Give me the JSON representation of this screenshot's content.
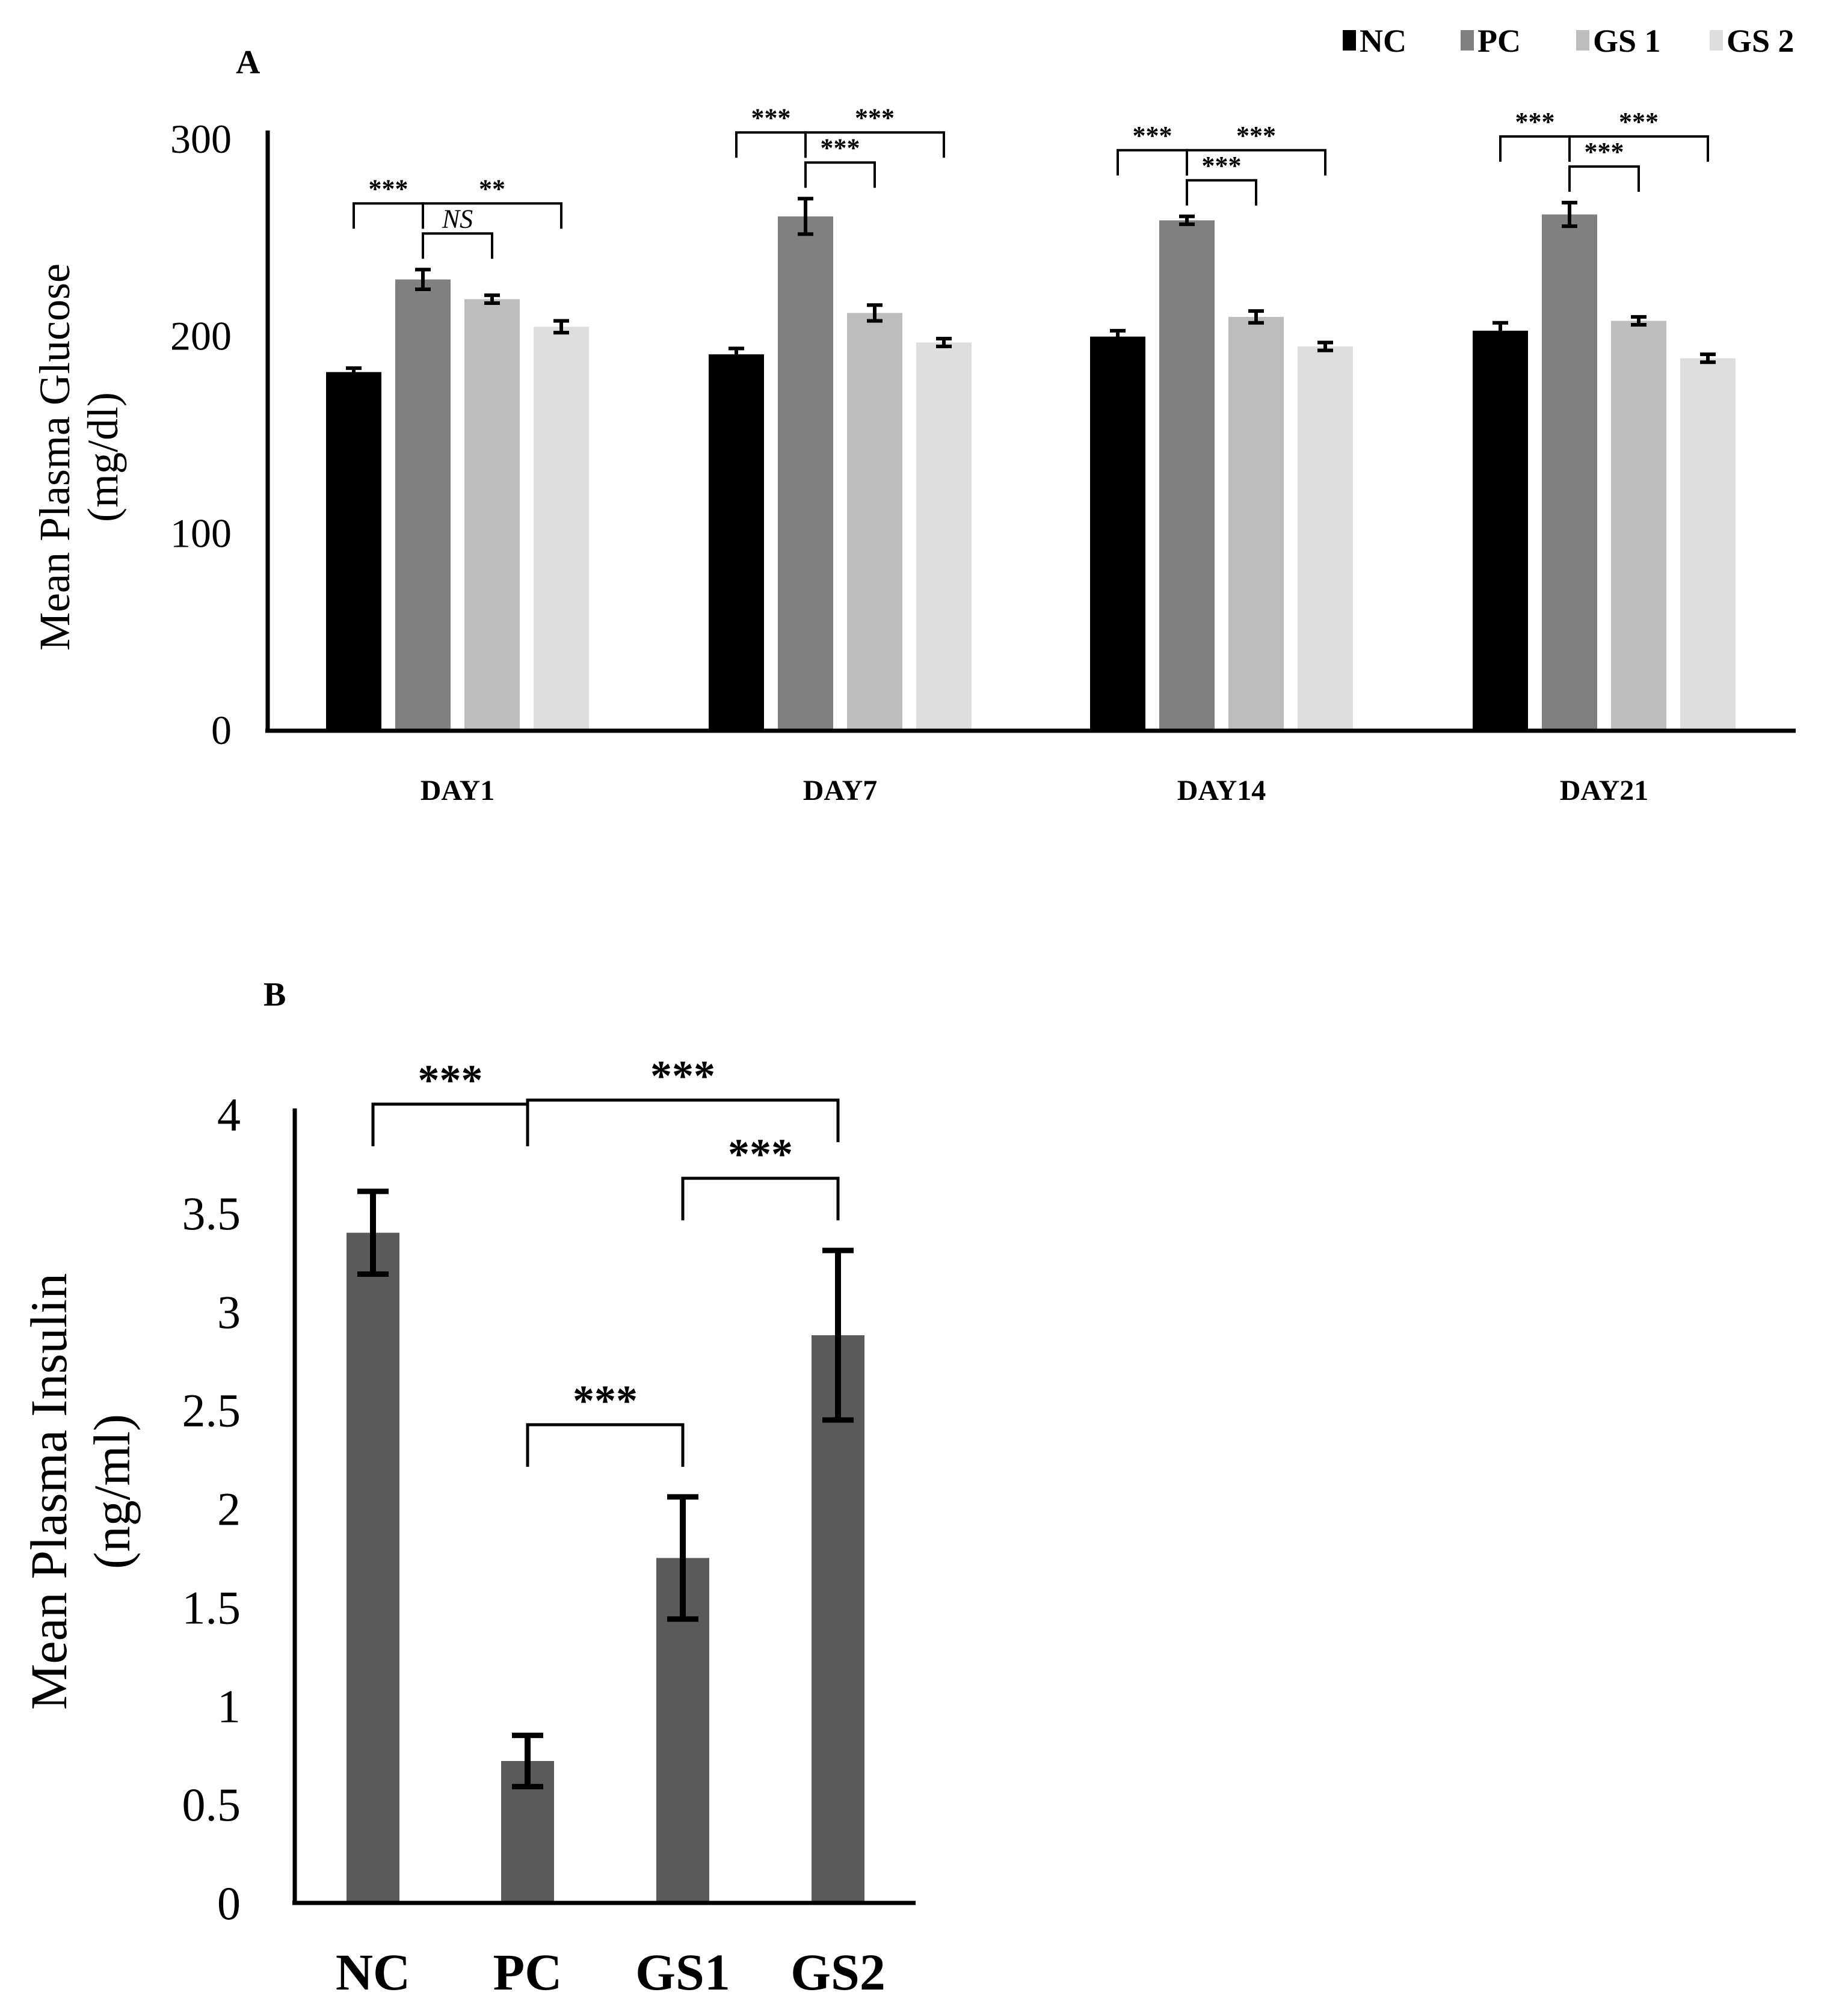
{
  "chart_data": [
    {
      "panel": "A",
      "type": "bar",
      "ylabel_line1": "Mean Plasma Glucose",
      "ylabel_line2": "(mg/dl)",
      "xlabel": "",
      "ylim": [
        0,
        300
      ],
      "yticks": [
        "0",
        "100",
        "200",
        "300"
      ],
      "categories": [
        "DAY1",
        "DAY7",
        "DAY14",
        "DAY21"
      ],
      "legend_position": "top-right",
      "series": [
        {
          "name": "NC",
          "color": "#000000",
          "values": [
            182,
            191,
            200,
            203
          ],
          "errors": [
            2,
            3,
            3,
            4
          ]
        },
        {
          "name": "PC",
          "color": "#808080",
          "values": [
            229,
            261,
            259,
            262
          ],
          "errors": [
            5,
            9,
            2,
            6
          ]
        },
        {
          "name": "GS 1",
          "color": "#bdbdbd",
          "values": [
            219,
            212,
            210,
            208
          ],
          "errors": [
            2,
            4,
            3,
            2
          ]
        },
        {
          "name": "GS 2",
          "color": "#dedede",
          "values": [
            205,
            197,
            195,
            189
          ],
          "errors": [
            3,
            2,
            2,
            2
          ]
        }
      ],
      "annotations": [
        {
          "group": 0,
          "from": 0,
          "to": 1,
          "label": "***",
          "level": 1
        },
        {
          "group": 0,
          "from": 1,
          "to": 2,
          "label": "NS",
          "level": 0
        },
        {
          "group": 0,
          "from": 1,
          "to": 3,
          "label": "**",
          "level": 1
        },
        {
          "group": 1,
          "from": 0,
          "to": 1,
          "label": "***",
          "level": 1
        },
        {
          "group": 1,
          "from": 1,
          "to": 2,
          "label": "***",
          "level": 0
        },
        {
          "group": 1,
          "from": 1,
          "to": 3,
          "label": "***",
          "level": 1
        },
        {
          "group": 2,
          "from": 0,
          "to": 1,
          "label": "***",
          "level": 1
        },
        {
          "group": 2,
          "from": 1,
          "to": 2,
          "label": "***",
          "level": 0
        },
        {
          "group": 2,
          "from": 1,
          "to": 3,
          "label": "***",
          "level": 1
        },
        {
          "group": 3,
          "from": 0,
          "to": 1,
          "label": "***",
          "level": 1
        },
        {
          "group": 3,
          "from": 1,
          "to": 2,
          "label": "***",
          "level": 0
        },
        {
          "group": 3,
          "from": 1,
          "to": 3,
          "label": "***",
          "level": 1
        }
      ]
    },
    {
      "panel": "B",
      "type": "bar",
      "ylabel_line1": "Mean Plasma Insulin",
      "ylabel_line2": "(ng/ml)",
      "xlabel": "",
      "ylim": [
        0,
        4
      ],
      "yticks": [
        "0",
        "0.5",
        "1",
        "1.5",
        "2",
        "2.5",
        "3",
        "3.5",
        "4"
      ],
      "categories": [
        "NC",
        "PC",
        "GS1",
        "GS2"
      ],
      "color": "#5a5a5a",
      "values": [
        3.4,
        0.72,
        1.75,
        2.88
      ],
      "errors": [
        0.21,
        0.13,
        0.31,
        0.43
      ],
      "annotations": [
        {
          "from": 0,
          "to": 1,
          "label": "***",
          "level": 0
        },
        {
          "from": 1,
          "to": 2,
          "label": "***",
          "level": 0
        },
        {
          "from": 2,
          "to": 3,
          "label": "***",
          "level": 0
        },
        {
          "from": 1,
          "to": 3,
          "label": "***",
          "level": 1
        }
      ]
    }
  ]
}
